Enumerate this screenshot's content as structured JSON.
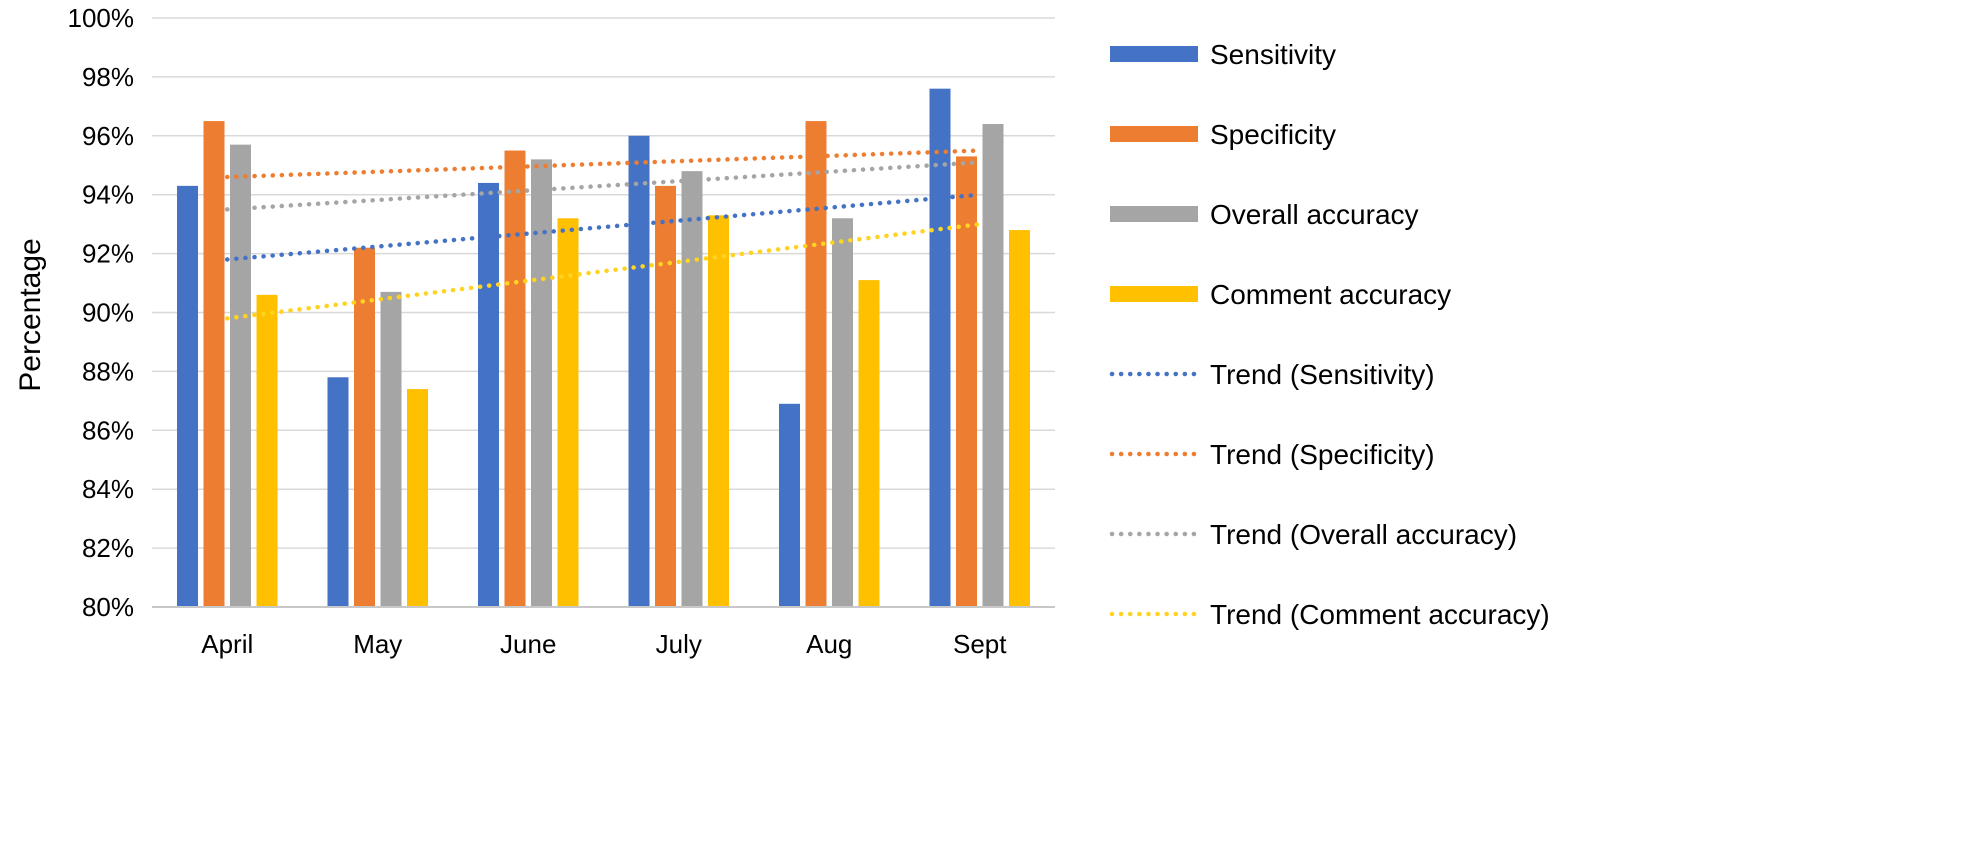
{
  "chart_data": {
    "type": "bar",
    "ylabel": "Percentage",
    "xlabel": "",
    "ylim": [
      80,
      100
    ],
    "y_tick_step": 2,
    "y_tick_suffix": "%",
    "grid": true,
    "legend_position": "right",
    "categories": [
      "April",
      "May",
      "June",
      "July",
      "Aug",
      "Sept"
    ],
    "series": [
      {
        "name": "Sensitivity",
        "color": "#4472C4",
        "values": [
          94.3,
          87.8,
          94.4,
          96.0,
          86.9,
          97.6
        ]
      },
      {
        "name": "Specificity",
        "color": "#ED7D31",
        "values": [
          96.5,
          92.2,
          95.5,
          94.3,
          96.5,
          95.3
        ]
      },
      {
        "name": "Overall accuracy",
        "color": "#A5A5A5",
        "values": [
          95.7,
          90.7,
          95.2,
          94.8,
          93.2,
          96.4
        ]
      },
      {
        "name": "Comment accuracy",
        "color": "#FFC000",
        "values": [
          90.6,
          87.4,
          93.2,
          93.3,
          91.1,
          92.8
        ]
      }
    ],
    "trendlines": [
      {
        "name": "Trend (Sensitivity)",
        "color": "#4472C4",
        "start": 91.8,
        "end": 94.0
      },
      {
        "name": "Trend (Specificity)",
        "color": "#ED7D31",
        "start": 94.6,
        "end": 95.5
      },
      {
        "name": "Trend (Overall accuracy)",
        "color": "#A5A5A5",
        "start": 93.5,
        "end": 95.1
      },
      {
        "name": "Trend (Comment accuracy)",
        "color": "#FFD320",
        "start": 89.8,
        "end": 93.0
      }
    ]
  }
}
